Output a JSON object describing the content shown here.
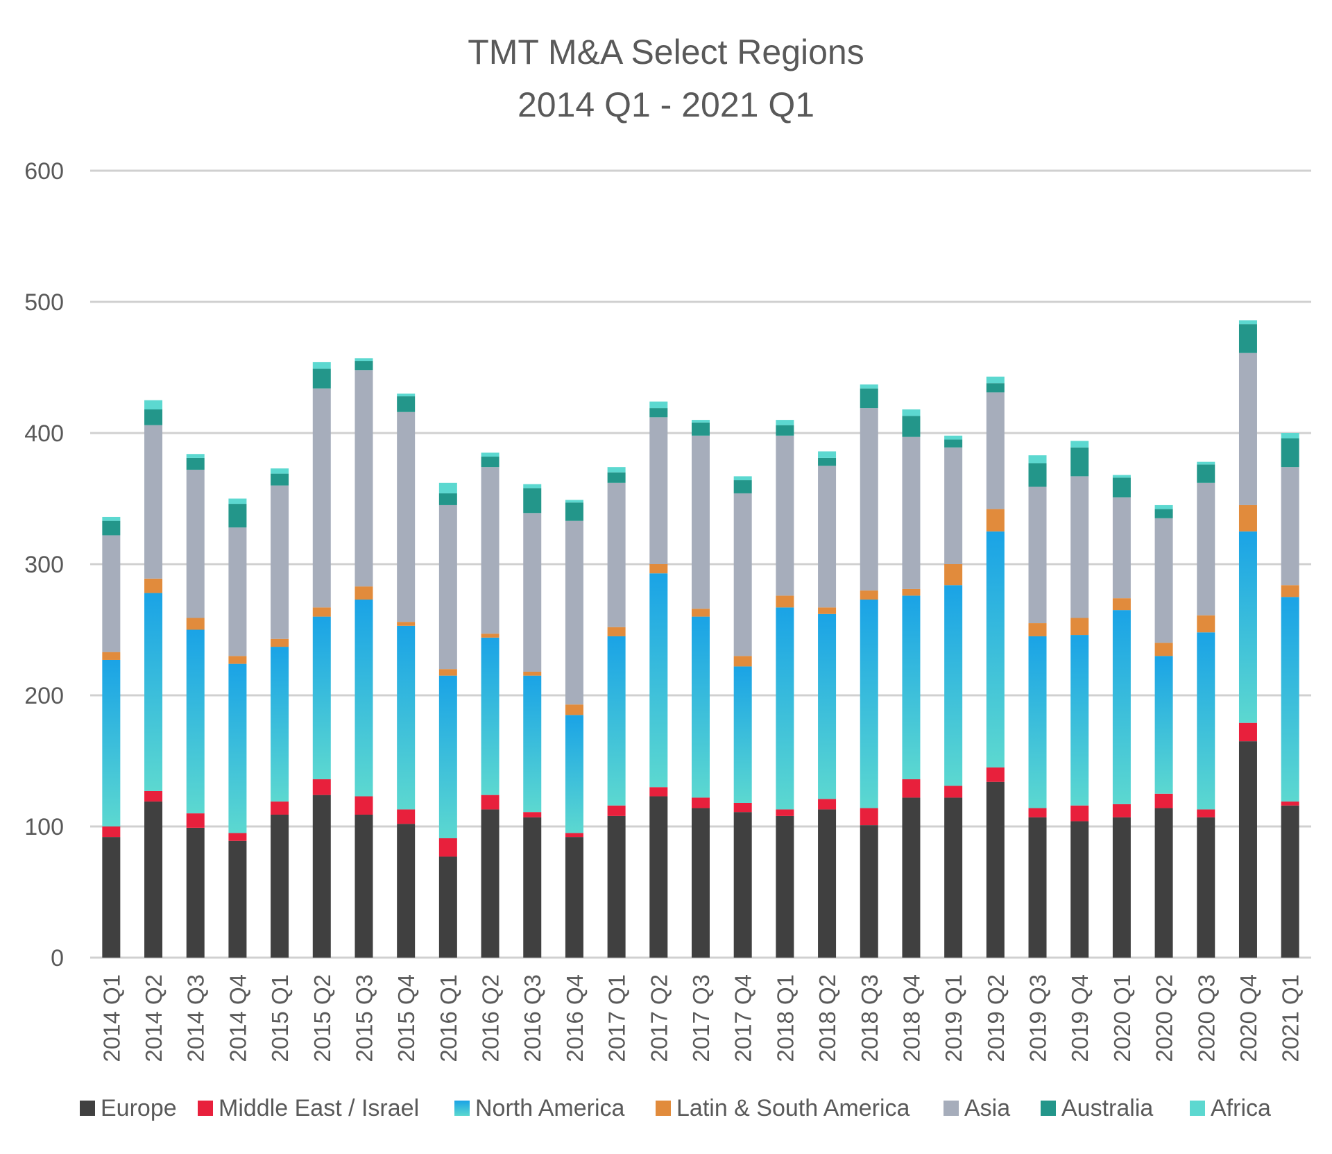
{
  "chart_data": {
    "type": "bar",
    "stacked": true,
    "title": "TMT M&A Select Regions",
    "subtitle": "2014 Q1 - 2021 Q1",
    "xlabel": "",
    "ylabel": "",
    "ylim": [
      0,
      600
    ],
    "yticks": [
      0,
      100,
      200,
      300,
      400,
      500,
      600
    ],
    "grid": true,
    "legend_position": "bottom",
    "categories": [
      "2014 Q1",
      "2014 Q2",
      "2014 Q3",
      "2014 Q4",
      "2015 Q1",
      "2015 Q2",
      "2015 Q3",
      "2015 Q4",
      "2016 Q1",
      "2016 Q2",
      "2016 Q3",
      "2016 Q4",
      "2017 Q1",
      "2017 Q2",
      "2017 Q3",
      "2017 Q4",
      "2018 Q1",
      "2018 Q2",
      "2018 Q3",
      "2018 Q4",
      "2019 Q1",
      "2019 Q2",
      "2019 Q3",
      "2019 Q4",
      "2020 Q1",
      "2020 Q2",
      "2020 Q3",
      "2020 Q4",
      "2021 Q1"
    ],
    "series": [
      {
        "name": "Europe",
        "color": "#404040",
        "values": [
          92,
          119,
          99,
          89,
          109,
          124,
          109,
          102,
          77,
          113,
          107,
          92,
          108,
          123,
          114,
          111,
          108,
          113,
          101,
          122,
          122,
          134,
          107,
          104,
          107,
          114,
          107,
          165,
          116
        ]
      },
      {
        "name": "Middle East / Israel",
        "color": "#e8203c",
        "values": [
          8,
          8,
          11,
          6,
          10,
          12,
          14,
          11,
          14,
          11,
          4,
          3,
          8,
          7,
          8,
          7,
          5,
          8,
          13,
          14,
          9,
          11,
          7,
          12,
          10,
          11,
          6,
          14,
          3
        ]
      },
      {
        "name": "North America",
        "color": "#29b6e8",
        "values": [
          127,
          151,
          140,
          129,
          118,
          124,
          150,
          140,
          124,
          120,
          104,
          90,
          129,
          163,
          138,
          104,
          154,
          141,
          159,
          140,
          153,
          180,
          131,
          130,
          148,
          105,
          135,
          146,
          156
        ]
      },
      {
        "name": "Latin & South America",
        "color": "#e18b3c",
        "values": [
          6,
          11,
          9,
          6,
          6,
          7,
          10,
          3,
          5,
          3,
          3,
          8,
          7,
          7,
          6,
          8,
          9,
          5,
          7,
          5,
          16,
          17,
          10,
          13,
          9,
          10,
          13,
          20,
          9
        ]
      },
      {
        "name": "Asia",
        "color": "#a6adbb",
        "values": [
          89,
          117,
          113,
          98,
          117,
          167,
          165,
          160,
          125,
          127,
          121,
          140,
          110,
          112,
          132,
          124,
          122,
          108,
          139,
          116,
          89,
          89,
          104,
          108,
          77,
          95,
          101,
          116,
          90
        ]
      },
      {
        "name": "Australia",
        "color": "#23968a",
        "values": [
          11,
          12,
          9,
          18,
          9,
          15,
          7,
          12,
          9,
          8,
          19,
          14,
          8,
          7,
          10,
          10,
          8,
          6,
          15,
          16,
          6,
          7,
          18,
          22,
          15,
          7,
          14,
          22,
          22
        ]
      },
      {
        "name": "Africa",
        "color": "#5cd8d0",
        "values": [
          3,
          7,
          3,
          4,
          4,
          5,
          2,
          2,
          8,
          3,
          3,
          2,
          4,
          5,
          2,
          3,
          4,
          5,
          3,
          5,
          3,
          5,
          6,
          5,
          2,
          3,
          2,
          3,
          4
        ]
      }
    ]
  }
}
